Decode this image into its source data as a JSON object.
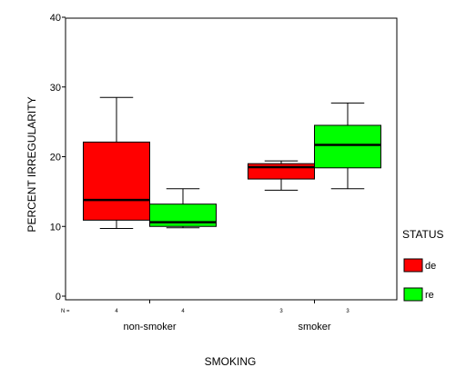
{
  "chart_data": {
    "type": "boxplot",
    "xlabel": "SMOKING",
    "ylabel": "PERCENT IRREGULARITY",
    "ylim": [
      0,
      40
    ],
    "yticks": [
      0,
      10,
      20,
      30,
      40
    ],
    "grid": false,
    "categories": [
      "non-smoker",
      "smoker"
    ],
    "n_prefix": "N =",
    "legend": {
      "title": "STATUS",
      "position": "right"
    },
    "series": [
      {
        "name": "de",
        "color": "#ff0000",
        "n": [
          "4",
          "3"
        ],
        "boxes": [
          {
            "min": 9.7,
            "q1": 10.9,
            "median": 13.8,
            "q3": 22.1,
            "max": 28.5
          },
          {
            "min": 15.2,
            "q1": 16.8,
            "median": 18.5,
            "q3": 19.0,
            "max": 19.4
          }
        ]
      },
      {
        "name": "re",
        "color": "#00ff00",
        "n": [
          "4",
          "3"
        ],
        "boxes": [
          {
            "min": 9.8,
            "q1": 10.0,
            "median": 10.6,
            "q3": 13.2,
            "max": 15.4
          },
          {
            "min": 15.4,
            "q1": 18.4,
            "median": 21.7,
            "q3": 24.5,
            "max": 27.7
          }
        ]
      }
    ]
  }
}
